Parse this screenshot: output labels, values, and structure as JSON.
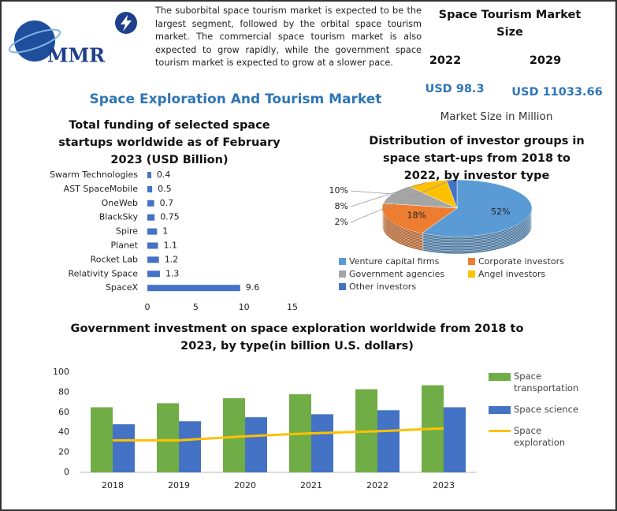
{
  "header": {
    "logo_text": "MMR",
    "intro": "The suborbital space tourism market is expected to be the largest segment, followed by the orbital space tourism market. The commercial space tourism market is also expected to grow rapidly, while the government space tourism market is expected to grow at a slower pace.",
    "market": {
      "title": "Space Tourism Market Size",
      "years": [
        "2022",
        "2029"
      ],
      "values": [
        "USD 98.3",
        "USD 11033.66"
      ],
      "note": "Market Size in Million"
    },
    "heading": "Space Exploration And Tourism Market"
  },
  "chart_data": [
    {
      "type": "hbar",
      "title": "Total funding of selected space startups worldwide as of February 2023 (USD Billion)",
      "categories": [
        "Swarm Technologies",
        "AST SpaceMobile",
        "OneWeb",
        "BlackSky",
        "Spire",
        "Planet",
        "Rocket Lab",
        "Relativity Space",
        "SpaceX"
      ],
      "values": [
        0.4,
        0.5,
        0.7,
        0.75,
        1,
        1.1,
        1.2,
        1.3,
        9.6
      ],
      "color": "#4472c4",
      "xlim": [
        0,
        15
      ],
      "xticks": [
        0,
        5,
        10,
        15
      ]
    },
    {
      "type": "pie3d",
      "title": "Distribution of investor groups in space start-ups from 2018 to 2022, by investor type",
      "categories": [
        "Venture capital firms",
        "Corporate investors",
        "Government agencies",
        "Angel investors",
        "Other investors"
      ],
      "values": [
        52,
        18,
        10,
        8,
        2
      ],
      "value_labels": [
        "52%",
        "18%",
        "10%",
        "8%",
        "2%"
      ],
      "colors": [
        "#5b9bd5",
        "#ed7d31",
        "#a5a5a5",
        "#ffc000",
        "#4472c4"
      ]
    },
    {
      "type": "combo",
      "title": "Government investment on space exploration worldwide from 2018 to 2023, by type(in billion U.S. dollars)",
      "categories": [
        "2018",
        "2019",
        "2020",
        "2021",
        "2022",
        "2023"
      ],
      "series": [
        {
          "name": "Space transportation",
          "kind": "bar",
          "color": "#70ad47",
          "values": [
            65,
            69,
            74,
            78,
            83,
            87
          ]
        },
        {
          "name": "Space science",
          "kind": "bar",
          "color": "#4472c4",
          "values": [
            48,
            51,
            55,
            58,
            62,
            65
          ]
        },
        {
          "name": "Space exploration",
          "kind": "line",
          "color": "#ffc000",
          "values": [
            32,
            32,
            36,
            39,
            41,
            44
          ]
        }
      ],
      "ylim": [
        0,
        100
      ],
      "yticks": [
        0,
        20,
        40,
        60,
        80,
        100
      ],
      "grid": false
    }
  ]
}
